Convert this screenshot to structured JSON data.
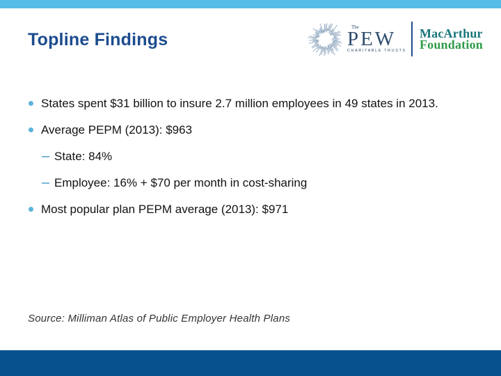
{
  "header": {
    "title": "Topline Findings"
  },
  "logos": {
    "pew": {
      "the": "The",
      "name": "PEW",
      "tagline": "CHARITABLE TRUSTS"
    },
    "macarthur": {
      "line1": "MacArthur",
      "line2": "Foundation"
    }
  },
  "content": {
    "bullets": [
      {
        "level": 1,
        "text": "States spent $31 billion to insure 2.7 million employees in 49 states in 2013."
      },
      {
        "level": 1,
        "text": "Average PEPM (2013): $963"
      },
      {
        "level": 2,
        "text": "State: 84%"
      },
      {
        "level": 2,
        "text": "Employee: 16% + $70 per month in cost-sharing"
      },
      {
        "level": 1,
        "text": "Most popular plan PEPM average (2013): $971"
      }
    ],
    "source": "Source: Milliman Atlas of Public Employer Health Plans"
  },
  "colors": {
    "top_bar": "#56bce6",
    "bottom_bar": "#05528f",
    "title": "#1d4c8f",
    "bullet_marker": "#5eb3d9",
    "pew_navy": "#2f4d6e",
    "sunburst_gray_blue": "#8ea6bd",
    "macarthur_teal": "#19767c",
    "foundation_green": "#2f9c49",
    "body_text": "#121212"
  }
}
